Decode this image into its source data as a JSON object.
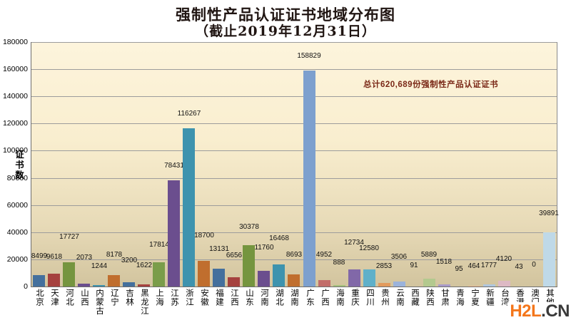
{
  "title": {
    "line1": "强制性产品认证证书地域分布图",
    "line2": "（截止2019年12月31日）"
  },
  "annotation": {
    "text": "总计620,689份强制性产品认证证书"
  },
  "watermark": {
    "part1": "H2L",
    "part2": ".CN"
  },
  "y_axis": {
    "title": "证书数"
  },
  "colors": {
    "title": "#201512",
    "annotation": "#7a2817",
    "watermark_accent": "#F4761B",
    "watermark_dark": "#3a3a3a",
    "grid": "#9c9c9c",
    "plot_bg_top": "#FDF4DC",
    "plot_bg_bottom": "#D2C49E"
  },
  "chart_data": {
    "type": "bar",
    "title": "强制性产品认证证书地域分布图（截止2019年12月31日）",
    "xlabel": "",
    "ylabel": "证书数",
    "ylim": [
      0,
      180000
    ],
    "ytick_step": 20000,
    "grid": true,
    "legend": false,
    "total": 620689,
    "categories": [
      "北京",
      "天津",
      "河北",
      "山西",
      "内蒙古",
      "辽宁",
      "吉林",
      "黑龙江",
      "上海",
      "江苏",
      "浙江",
      "安徽",
      "福建",
      "江西",
      "山东",
      "河南",
      "湖北",
      "湖南",
      "广东",
      "广西",
      "海南",
      "重庆",
      "四川",
      "贵州",
      "云南",
      "西藏",
      "陕西",
      "甘肃",
      "青海",
      "宁夏",
      "新疆",
      "台湾",
      "香港",
      "澳门",
      "其他"
    ],
    "values": [
      8499,
      9618,
      17727,
      2073,
      1244,
      8178,
      3200,
      1622,
      17814,
      78431,
      116267,
      18700,
      13131,
      6656,
      30378,
      11760,
      16468,
      8693,
      158829,
      4952,
      888,
      12734,
      12580,
      2853,
      3506,
      91,
      5889,
      1518,
      95,
      464,
      1777,
      4120,
      43,
      0,
      39891
    ],
    "colors": [
      "#44709D",
      "#A5413E",
      "#75953F",
      "#6B4E8E",
      "#3E93AE",
      "#C06E2E",
      "#44709D",
      "#A5413E",
      "#7A9D4A",
      "#6B4E8E",
      "#3E93AE",
      "#C06E2E",
      "#44709D",
      "#A5413E",
      "#75953F",
      "#6B4E8E",
      "#3E93AE",
      "#C06E2E",
      "#7DA0CE",
      "#C26D6A",
      "#A6C17D",
      "#8168A8",
      "#5FB0C9",
      "#E29A5C",
      "#9BB3DB",
      "#D1918F",
      "#B3C98E",
      "#A99BC8",
      "#87C3D6",
      "#EDBD92",
      "#AFC6DE",
      "#DDB9C4",
      "#CBDCB0",
      "#C8BCDB",
      "#BFD9E8"
    ],
    "label_gaps": [
      21,
      18,
      30,
      31,
      21,
      23,
      25,
      21,
      19,
      15,
      15,
      30,
      22,
      25,
      20,
      27,
      31,
      22,
      15,
      30,
      26,
      32,
      24,
      18,
      29,
      24,
      28,
      26,
      19,
      22,
      21,
      25,
      22,
      25,
      21
    ]
  }
}
